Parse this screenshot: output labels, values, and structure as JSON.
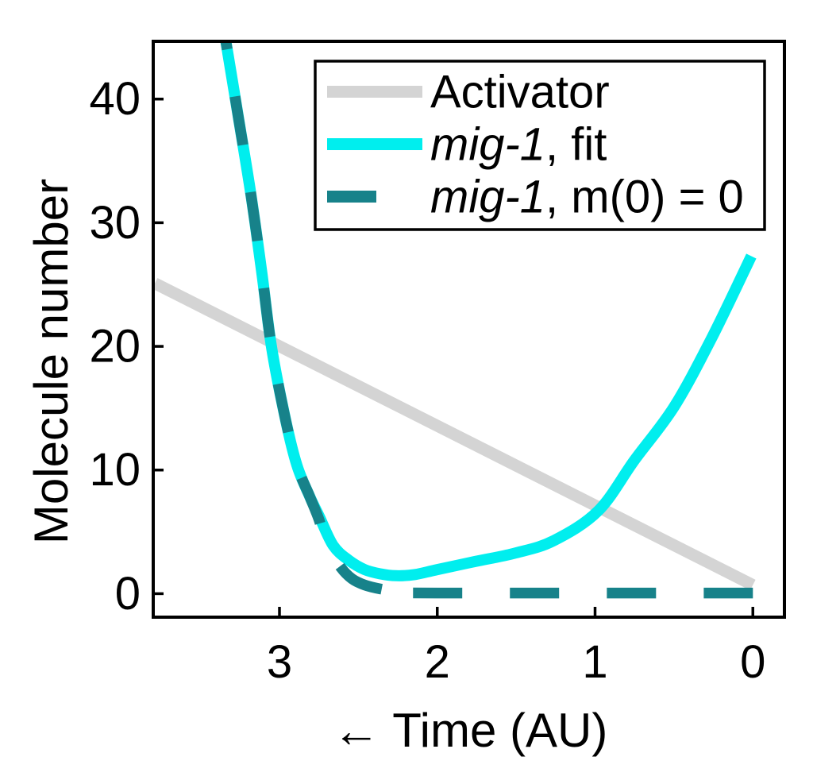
{
  "figure": {
    "background": "#ffffff",
    "text_color": "#000000"
  },
  "axes": {
    "x": {
      "label": "← Time (AU)",
      "ticks": [
        3,
        2,
        1,
        0
      ]
    },
    "y": {
      "label": "Molecule number",
      "ticks": [
        0,
        10,
        20,
        30,
        40
      ]
    }
  },
  "legend": {
    "items": [
      {
        "gene": "",
        "rest": "Activator",
        "color": "#d4d4d4",
        "style": "solid"
      },
      {
        "gene": "mig-1",
        "rest": ", fit",
        "color": "#00eeee",
        "style": "solid"
      },
      {
        "gene": "mig-1",
        "rest": ", m(0) = 0",
        "color": "#17828a",
        "style": "dashed"
      }
    ]
  },
  "chart_data": {
    "type": "line",
    "title": "",
    "xlabel": "← Time (AU)",
    "ylabel": "Molecule number",
    "xlim": [
      3.8,
      -0.2
    ],
    "x_axis_reversed": true,
    "ylim": [
      -1.9,
      44.8
    ],
    "x_ticks": [
      3,
      2,
      1,
      0
    ],
    "y_ticks": [
      0,
      10,
      20,
      30,
      40
    ],
    "grid": false,
    "legend_position": "upper right",
    "series": [
      {
        "name": "Activator",
        "color": "#d4d4d4",
        "style": "solid",
        "width": 15,
        "points": [
          [
            3.79,
            25.1
          ],
          [
            0.0,
            0.7
          ]
        ]
      },
      {
        "name": "mig-1, fit",
        "color": "#00eeee",
        "style": "solid",
        "width": 14,
        "points": [
          [
            3.37,
            47.0
          ],
          [
            3.34,
            44.7
          ],
          [
            3.26,
            38.5
          ],
          [
            3.18,
            32.2
          ],
          [
            3.11,
            25.8
          ],
          [
            3.05,
            19.9
          ],
          [
            2.96,
            14.0
          ],
          [
            2.89,
            10.4
          ],
          [
            2.81,
            7.9
          ],
          [
            2.75,
            6.3
          ],
          [
            2.66,
            3.9
          ],
          [
            2.56,
            2.7
          ],
          [
            2.46,
            1.95
          ],
          [
            2.36,
            1.6
          ],
          [
            2.26,
            1.45
          ],
          [
            2.14,
            1.55
          ],
          [
            2.0,
            1.95
          ],
          [
            1.76,
            2.6
          ],
          [
            1.5,
            3.3
          ],
          [
            1.26,
            4.3
          ],
          [
            0.98,
            6.7
          ],
          [
            0.75,
            10.8
          ],
          [
            0.5,
            15.1
          ],
          [
            0.26,
            20.7
          ],
          [
            0.01,
            27.3
          ]
        ]
      },
      {
        "name": "mig-1, m(0) = 0",
        "color": "#17828a",
        "style": "dashed",
        "dash": [
          62,
          60
        ],
        "width": 13.5,
        "points": [
          [
            0.0,
            0.05
          ],
          [
            2.0,
            0.05
          ],
          [
            2.15,
            0.1
          ],
          [
            2.26,
            0.2
          ],
          [
            2.36,
            0.38
          ],
          [
            2.46,
            0.7
          ],
          [
            2.54,
            1.2
          ],
          [
            2.61,
            2.1
          ],
          [
            2.7,
            3.9
          ],
          [
            2.75,
            6.0
          ],
          [
            2.81,
            7.9
          ],
          [
            2.89,
            10.4
          ],
          [
            2.96,
            14.0
          ],
          [
            3.05,
            19.9
          ],
          [
            3.11,
            25.8
          ],
          [
            3.18,
            32.2
          ],
          [
            3.26,
            38.5
          ],
          [
            3.34,
            44.7
          ],
          [
            3.37,
            47.0
          ]
        ]
      }
    ]
  }
}
